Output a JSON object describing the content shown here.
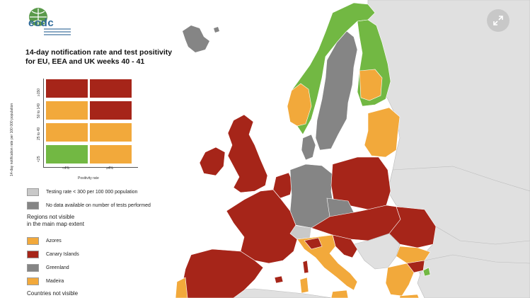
{
  "logo": {
    "name": "ecdc",
    "icon": "globe-icon"
  },
  "title": {
    "line1": "14-day notification rate and test positivity",
    "line2": "for EU, EEA and UK weeks 40 - 41"
  },
  "matrix": {
    "y_axis_label": "14-day notification rate per 100 000 population",
    "x_axis_label": "Positivity rate",
    "y_ticks": [
      "≥150",
      "50 to 149",
      "25 to 49",
      "<25"
    ],
    "x_ticks": [
      "<4%",
      "≥4%"
    ],
    "rows": [
      [
        "#a62519",
        "#a62519"
      ],
      [
        "#f2a93b",
        "#a62519"
      ],
      [
        "#f2a93b",
        "#f2a93b"
      ],
      [
        "#72b843",
        "#f2a93b"
      ]
    ]
  },
  "legend": {
    "testing_low": "Testing rate < 300 per 100 000 population",
    "no_data": "No data available on number of tests performed",
    "regions_heading_1": "Regions not visible",
    "regions_heading_2": "in the main map extent",
    "regions": [
      {
        "label": "Azores",
        "color": "#f2a93b"
      },
      {
        "label": "Canary Islands",
        "color": "#a62519"
      },
      {
        "label": "Greenland",
        "color": "#858585"
      },
      {
        "label": "Madeira",
        "color": "#f2a93b"
      }
    ],
    "countries_heading": "Countries not visible"
  },
  "colors": {
    "red": "#a62519",
    "orange": "#f2a93b",
    "green": "#72b843",
    "grey_dark": "#858585",
    "grey_light": "#c9c9c9",
    "non_eu": "#e0e0e0",
    "sea": "#ffffff"
  },
  "controls": {
    "expand": "expand-icon"
  }
}
